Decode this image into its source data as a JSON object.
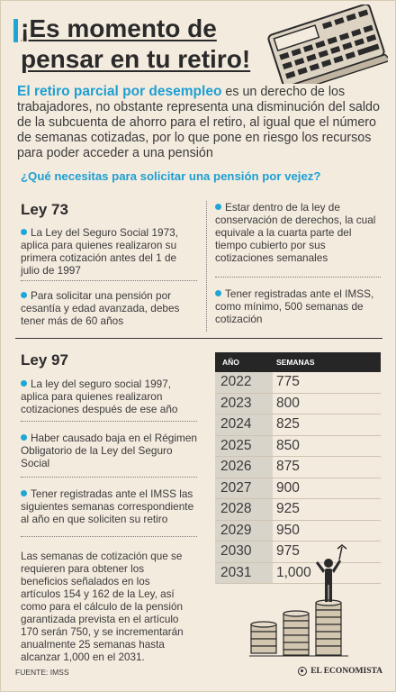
{
  "header": {
    "title_line1": "¡Es momento de",
    "title_line2": "pensar en tu retiro!"
  },
  "intro": {
    "lead": "El retiro parcial por desempleo",
    "text": " es un derecho de los trabajadores, no obstante representa una disminución del saldo de la subcuenta de ahorro para el retiro, al igual que el número de semanas cotizadas, por lo que pone en riesgo los recursos para poder acceder a una pensión"
  },
  "question": "¿Qué necesitas para solicitar una pensión por vejez?",
  "ley73": {
    "title": "Ley 73",
    "left": [
      "La Ley del Seguro Social 1973, aplica para quienes realizaron su primera cotización antes del 1 de julio de 1997",
      "Para solicitar una pensión por cesantía y edad avanzada, debes tener más de 60 años"
    ],
    "right": [
      "Estar dentro de la ley de conservación de derechos, la cual equivale a la cuarta parte del tiempo cubierto por sus cotizaciones semanales",
      "Tener registradas ante el IMSS, como mínimo, 500 semanas de cotización"
    ]
  },
  "ley97": {
    "title": "Ley 97",
    "items": [
      "La ley del seguro social 1997, aplica para quienes realizaron cotizaciones después de ese año",
      "Haber causado baja en el Régimen Obligatorio de la Ley del Seguro Social",
      "Tener registradas ante el IMSS las siguientes semanas correspondiente al año en que soliciten su retiro"
    ],
    "note": "Las semanas de cotización que se requieren para obtener los beneficios señalados en los artículos 154 y 162 de la Ley, así como para el cálculo de la pensión garantizada prevista en el artículo 170 serán 750, y se incrementarán anualmente 25 semanas hasta alcanzar 1,000 en el 2031."
  },
  "table": {
    "headers": [
      "AÑO",
      "SEMANAS"
    ],
    "rows": [
      [
        "2022",
        "775"
      ],
      [
        "2023",
        "800"
      ],
      [
        "2024",
        "825"
      ],
      [
        "2025",
        "850"
      ],
      [
        "2026",
        "875"
      ],
      [
        "2027",
        "900"
      ],
      [
        "2028",
        "925"
      ],
      [
        "2029",
        "950"
      ],
      [
        "2030",
        "975"
      ],
      [
        "2031",
        "1,000"
      ]
    ]
  },
  "footer": {
    "source": "FUENTE: IMSS",
    "brand": "EL ECONOMISTA"
  },
  "colors": {
    "accent": "#1ea7d6",
    "background": "#f4ebdf",
    "dark": "#262626"
  }
}
